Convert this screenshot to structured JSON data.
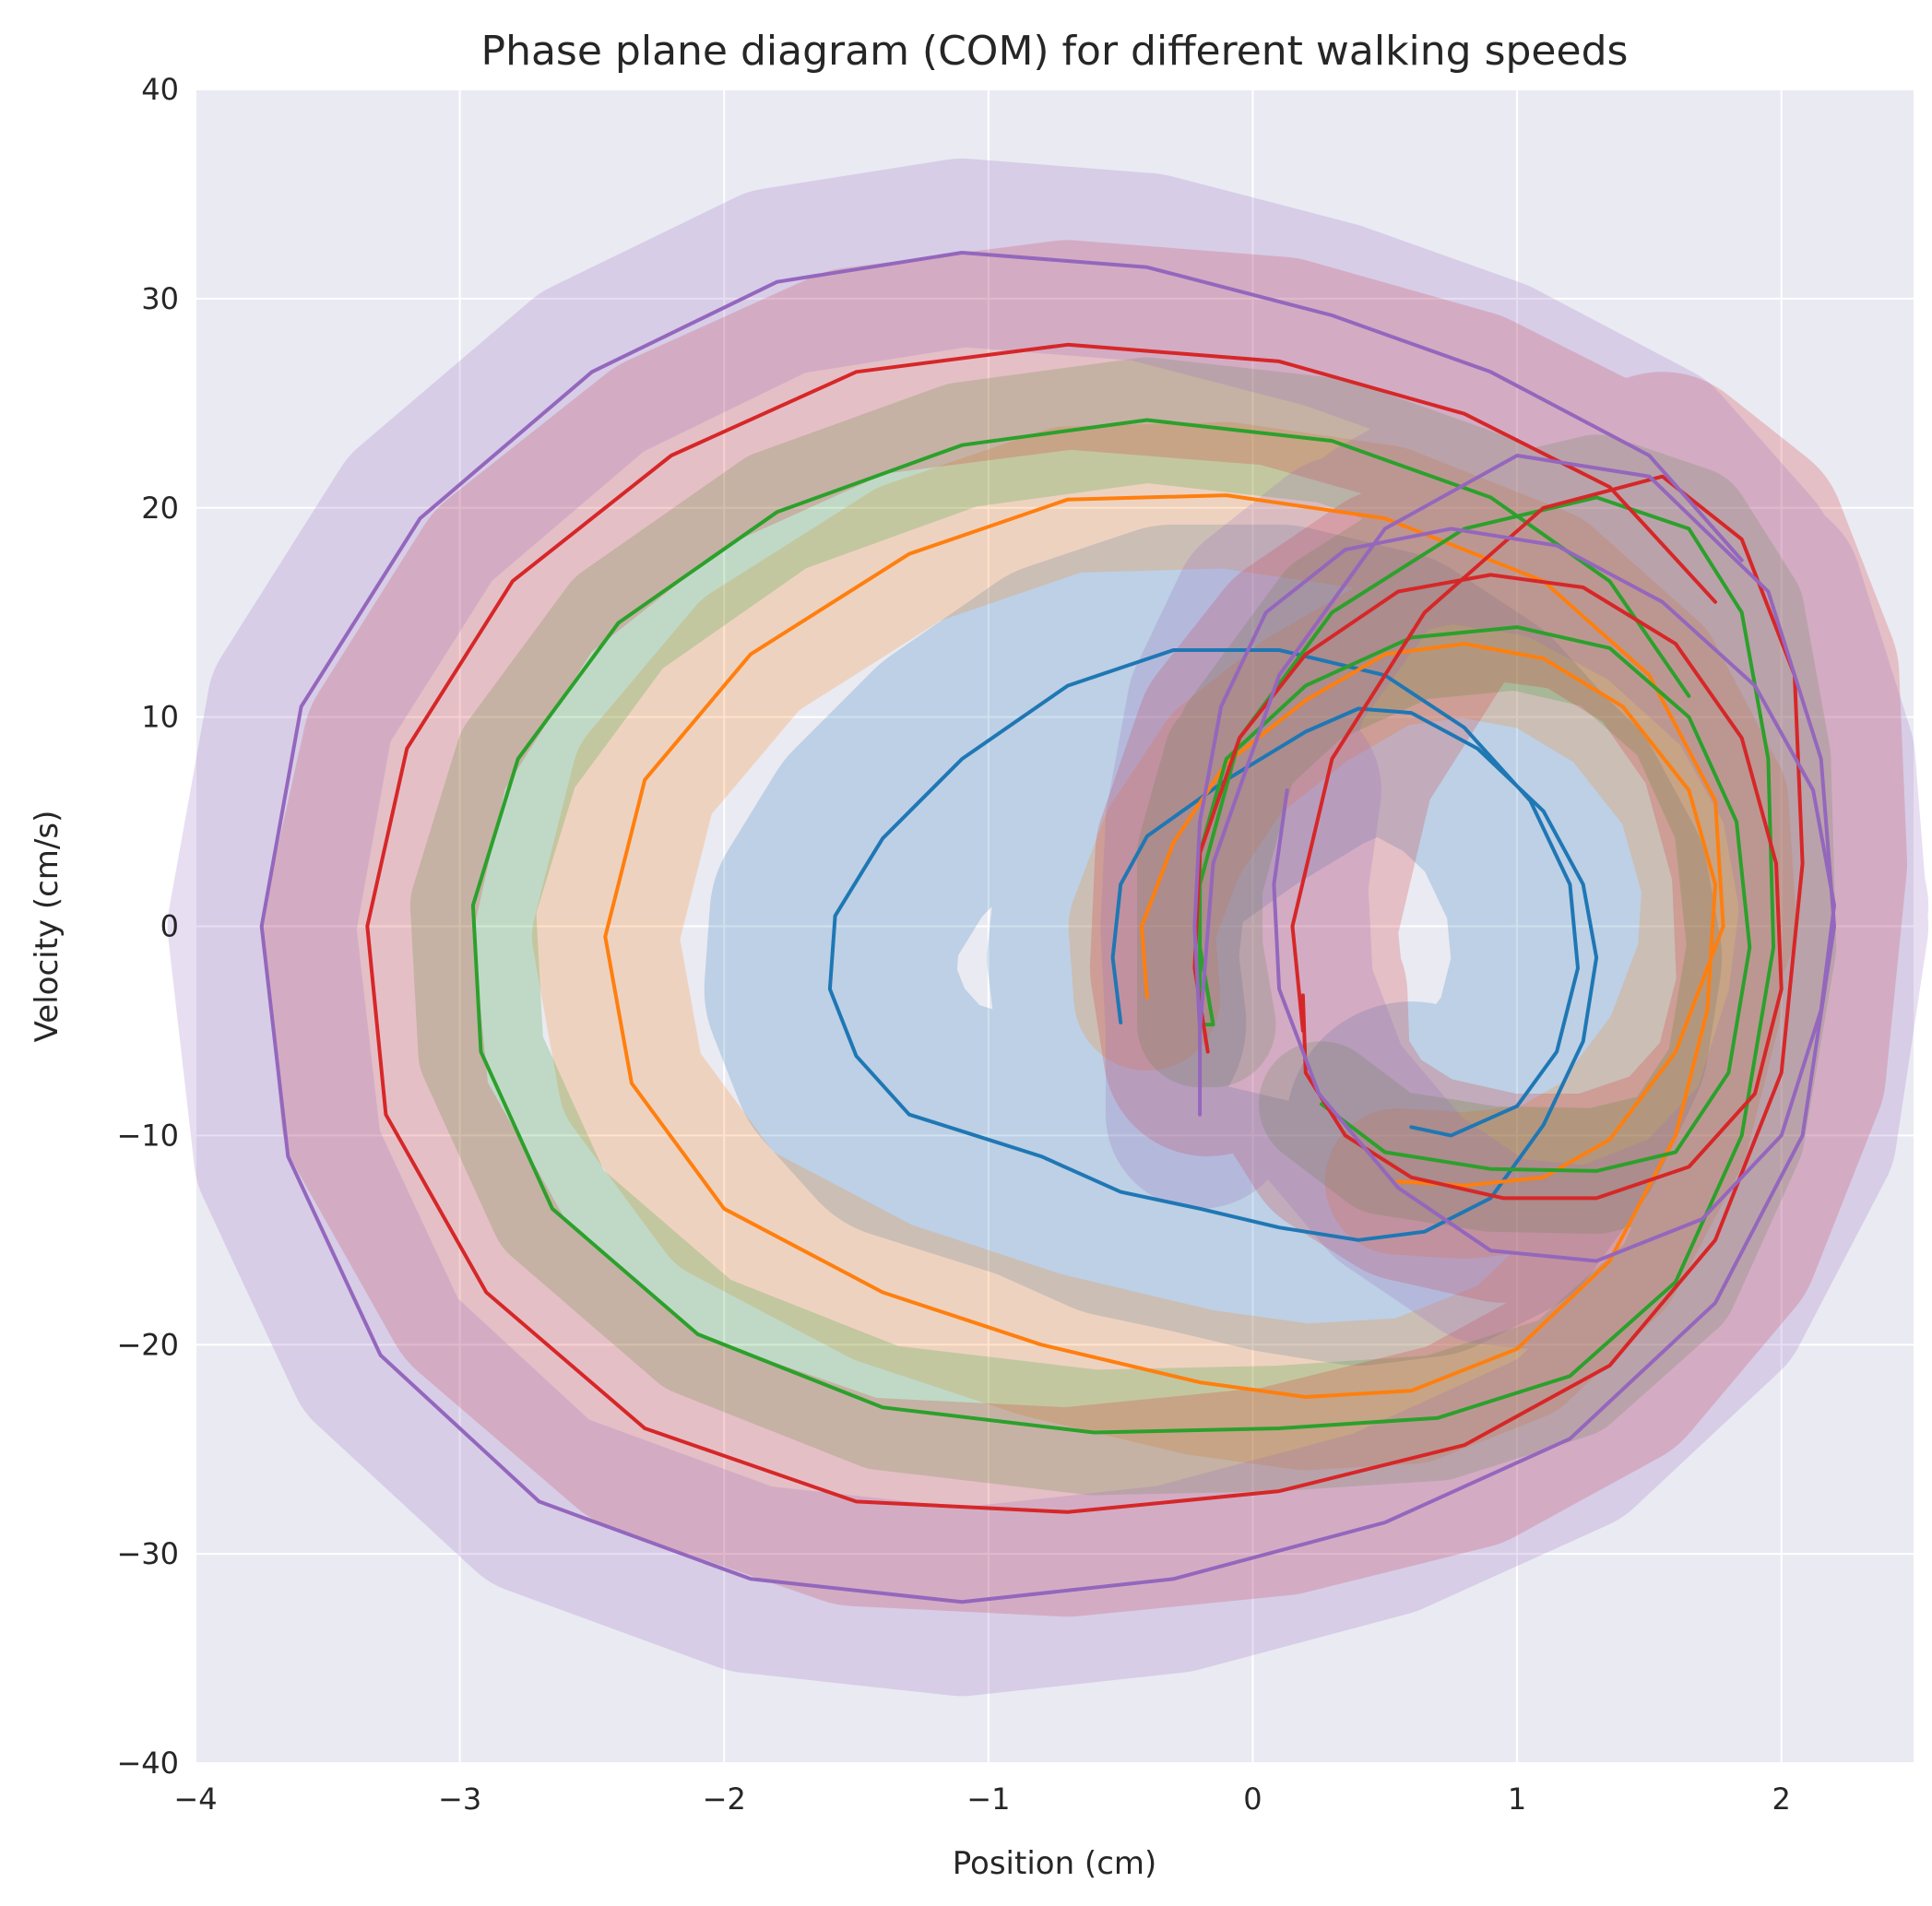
{
  "chart_data": {
    "type": "line",
    "title": "Phase plane diagram (COM) for different walking speeds",
    "xlabel": "Position (cm)",
    "ylabel": "Velocity (cm/s)",
    "xlim": [
      -4,
      2.5
    ],
    "ylim": [
      -40,
      40
    ],
    "xticks": [
      -4,
      -3,
      -2,
      -1,
      0,
      1,
      2
    ],
    "yticks": [
      -40,
      -30,
      -20,
      -10,
      0,
      10,
      20,
      30,
      40
    ],
    "xtick_labels": [
      "−4",
      "−3",
      "−2",
      "−1",
      "0",
      "1",
      "2"
    ],
    "ytick_labels": [
      "−40",
      "−30",
      "−20",
      "−10",
      "0",
      "10",
      "20",
      "30",
      "40"
    ],
    "grid": true,
    "background": "#eaeaf2",
    "series": [
      {
        "color": "#1f77b4",
        "band_width": 6,
        "points": [
          [
            -0.5,
            -4.6
          ],
          [
            -0.53,
            -1.5
          ],
          [
            -0.5,
            2
          ],
          [
            -0.4,
            4.3
          ],
          [
            -0.1,
            7
          ],
          [
            0.2,
            9.3
          ],
          [
            0.4,
            10.4
          ],
          [
            0.6,
            10.2
          ],
          [
            0.85,
            8.5
          ],
          [
            1.1,
            5.5
          ],
          [
            1.25,
            2
          ],
          [
            1.3,
            -1.5
          ],
          [
            1.25,
            -5.5
          ],
          [
            1.1,
            -9.5
          ],
          [
            0.9,
            -13
          ],
          [
            0.65,
            -14.6
          ],
          [
            0.4,
            -15
          ],
          [
            0.1,
            -14.4
          ],
          [
            -0.2,
            -13.5
          ],
          [
            -0.5,
            -12.7
          ],
          [
            -0.8,
            -11
          ],
          [
            -1.1,
            -9.8
          ],
          [
            -1.3,
            -9
          ],
          [
            -1.5,
            -6.2
          ],
          [
            -1.6,
            -3
          ],
          [
            -1.58,
            0.5
          ],
          [
            -1.4,
            4.2
          ],
          [
            -1.1,
            8
          ],
          [
            -0.7,
            11.5
          ],
          [
            -0.3,
            13.2
          ],
          [
            0.1,
            13.2
          ],
          [
            0.5,
            12
          ],
          [
            0.8,
            9.5
          ],
          [
            1.05,
            6
          ],
          [
            1.2,
            2
          ],
          [
            1.23,
            -2
          ],
          [
            1.15,
            -6
          ],
          [
            1.0,
            -8.6
          ],
          [
            0.75,
            -10
          ],
          [
            0.6,
            -9.6
          ]
        ]
      },
      {
        "color": "#ff7f0e",
        "band_width": 3.5,
        "points": [
          [
            -0.4,
            -3.4
          ],
          [
            -0.42,
            0
          ],
          [
            -0.3,
            4
          ],
          [
            -0.1,
            7.8
          ],
          [
            0.2,
            10.8
          ],
          [
            0.5,
            13
          ],
          [
            0.8,
            13.5
          ],
          [
            1.1,
            12.8
          ],
          [
            1.4,
            10.5
          ],
          [
            1.65,
            6.5
          ],
          [
            1.75,
            2
          ],
          [
            1.72,
            -4
          ],
          [
            1.6,
            -10
          ],
          [
            1.35,
            -16
          ],
          [
            1.0,
            -20.2
          ],
          [
            0.6,
            -22.2
          ],
          [
            0.2,
            -22.5
          ],
          [
            -0.2,
            -21.8
          ],
          [
            -0.8,
            -20
          ],
          [
            -1.4,
            -17.5
          ],
          [
            -2.0,
            -13.5
          ],
          [
            -2.35,
            -7.5
          ],
          [
            -2.45,
            -0.5
          ],
          [
            -2.3,
            7
          ],
          [
            -1.9,
            13
          ],
          [
            -1.3,
            17.8
          ],
          [
            -0.7,
            20.4
          ],
          [
            -0.1,
            20.6
          ],
          [
            0.5,
            19.5
          ],
          [
            1.1,
            16.5
          ],
          [
            1.5,
            12
          ],
          [
            1.75,
            6
          ],
          [
            1.78,
            0
          ],
          [
            1.6,
            -6
          ],
          [
            1.35,
            -10.2
          ],
          [
            1.1,
            -12
          ],
          [
            0.8,
            -12.4
          ],
          [
            0.55,
            -12.2
          ]
        ]
      },
      {
        "color": "#2ca02c",
        "band_width": 3,
        "points": [
          [
            0.26,
            -8.5
          ],
          [
            0.5,
            -10.8
          ],
          [
            0.9,
            -11.6
          ],
          [
            1.3,
            -11.7
          ],
          [
            1.6,
            -10.8
          ],
          [
            1.8,
            -7
          ],
          [
            1.88,
            -1
          ],
          [
            1.83,
            5
          ],
          [
            1.65,
            10
          ],
          [
            1.35,
            13.3
          ],
          [
            1.0,
            14.3
          ],
          [
            0.6,
            13.8
          ],
          [
            0.2,
            11.5
          ],
          [
            -0.1,
            8
          ],
          [
            -0.2,
            3.5
          ],
          [
            -0.2,
            -1
          ],
          [
            -0.15,
            -4.7
          ],
          [
            -0.2,
            -4.7
          ],
          [
            -0.2,
            2
          ],
          [
            -0.05,
            9
          ],
          [
            0.3,
            15
          ],
          [
            0.8,
            19
          ],
          [
            1.3,
            20.5
          ],
          [
            1.65,
            19
          ],
          [
            1.85,
            15
          ],
          [
            1.95,
            8
          ],
          [
            1.97,
            -1
          ],
          [
            1.85,
            -10
          ],
          [
            1.6,
            -17
          ],
          [
            1.2,
            -21.5
          ],
          [
            0.7,
            -23.5
          ],
          [
            0.1,
            -24
          ],
          [
            -0.6,
            -24.2
          ],
          [
            -1.4,
            -23
          ],
          [
            -2.1,
            -19.5
          ],
          [
            -2.65,
            -13.5
          ],
          [
            -2.92,
            -6
          ],
          [
            -2.95,
            1
          ],
          [
            -2.78,
            8
          ],
          [
            -2.4,
            14.5
          ],
          [
            -1.8,
            19.8
          ],
          [
            -1.1,
            23
          ],
          [
            -0.4,
            24.2
          ],
          [
            0.3,
            23.2
          ],
          [
            0.9,
            20.5
          ],
          [
            1.35,
            16.5
          ],
          [
            1.65,
            11
          ]
        ]
      },
      {
        "color": "#d62728",
        "band_width": 5,
        "points": [
          [
            -0.17,
            -6
          ],
          [
            -0.22,
            -2
          ],
          [
            -0.2,
            3.5
          ],
          [
            -0.05,
            9
          ],
          [
            0.2,
            13
          ],
          [
            0.55,
            16
          ],
          [
            0.9,
            16.8
          ],
          [
            1.25,
            16.2
          ],
          [
            1.6,
            13.5
          ],
          [
            1.85,
            9
          ],
          [
            1.98,
            3
          ],
          [
            2.0,
            -3
          ],
          [
            1.9,
            -8
          ],
          [
            1.65,
            -11.5
          ],
          [
            1.3,
            -13
          ],
          [
            0.95,
            -13
          ],
          [
            0.6,
            -12
          ],
          [
            0.35,
            -10
          ],
          [
            0.2,
            -7
          ],
          [
            0.19,
            -3.3
          ],
          [
            0.19,
            -5
          ],
          [
            0.15,
            0
          ],
          [
            0.3,
            8
          ],
          [
            0.65,
            15
          ],
          [
            1.1,
            20
          ],
          [
            1.55,
            21.5
          ],
          [
            1.85,
            18.5
          ],
          [
            2.05,
            12
          ],
          [
            2.08,
            3
          ],
          [
            2.0,
            -7
          ],
          [
            1.75,
            -15
          ],
          [
            1.35,
            -21
          ],
          [
            0.8,
            -24.8
          ],
          [
            0.1,
            -27
          ],
          [
            -0.7,
            -28
          ],
          [
            -1.5,
            -27.5
          ],
          [
            -2.3,
            -24
          ],
          [
            -2.9,
            -17.5
          ],
          [
            -3.28,
            -9
          ],
          [
            -3.35,
            0
          ],
          [
            -3.2,
            8.5
          ],
          [
            -2.8,
            16.5
          ],
          [
            -2.2,
            22.5
          ],
          [
            -1.5,
            26.5
          ],
          [
            -0.7,
            27.8
          ],
          [
            0.1,
            27
          ],
          [
            0.8,
            24.5
          ],
          [
            1.35,
            21
          ],
          [
            1.75,
            15.5
          ]
        ]
      },
      {
        "color": "#9467bd",
        "band_width": 4.5,
        "points": [
          [
            0.13,
            6.5
          ],
          [
            0.08,
            2
          ],
          [
            0.1,
            -3
          ],
          [
            0.25,
            -8
          ],
          [
            0.55,
            -12.5
          ],
          [
            0.9,
            -15.5
          ],
          [
            1.3,
            -16
          ],
          [
            1.7,
            -14
          ],
          [
            2.0,
            -10
          ],
          [
            2.15,
            -4
          ],
          [
            2.2,
            1
          ],
          [
            2.12,
            6.5
          ],
          [
            1.9,
            11.5
          ],
          [
            1.55,
            15.5
          ],
          [
            1.15,
            18.2
          ],
          [
            0.75,
            19
          ],
          [
            0.35,
            18
          ],
          [
            0.05,
            15
          ],
          [
            -0.12,
            10.5
          ],
          [
            -0.2,
            5
          ],
          [
            -0.22,
            0
          ],
          [
            -0.2,
            -5
          ],
          [
            -0.2,
            -9
          ],
          [
            -0.2,
            -5
          ],
          [
            -0.15,
            3
          ],
          [
            0.1,
            12
          ],
          [
            0.5,
            19
          ],
          [
            1.0,
            22.5
          ],
          [
            1.5,
            21.5
          ],
          [
            1.95,
            16
          ],
          [
            2.15,
            8
          ],
          [
            2.2,
            0
          ],
          [
            2.08,
            -10
          ],
          [
            1.75,
            -18
          ],
          [
            1.2,
            -24.5
          ],
          [
            0.5,
            -28.5
          ],
          [
            -0.3,
            -31.2
          ],
          [
            -1.1,
            -32.3
          ],
          [
            -1.9,
            -31.2
          ],
          [
            -2.7,
            -27.5
          ],
          [
            -3.3,
            -20.5
          ],
          [
            -3.65,
            -11
          ],
          [
            -3.75,
            0
          ],
          [
            -3.6,
            10.5
          ],
          [
            -3.15,
            19.5
          ],
          [
            -2.5,
            26.5
          ],
          [
            -1.8,
            30.8
          ],
          [
            -1.1,
            32.2
          ],
          [
            -0.4,
            31.5
          ],
          [
            0.3,
            29.2
          ],
          [
            0.9,
            26.5
          ],
          [
            1.5,
            22.5
          ],
          [
            1.85,
            17.5
          ]
        ]
      }
    ]
  }
}
